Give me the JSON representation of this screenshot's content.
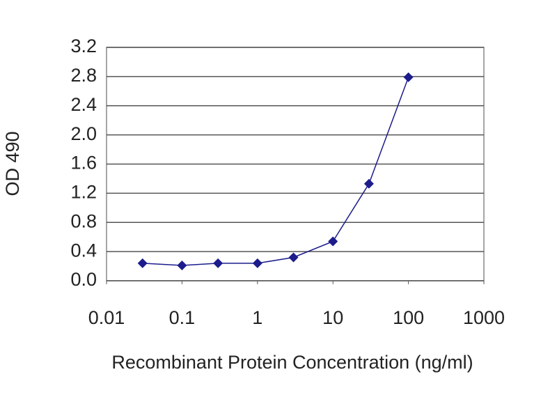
{
  "chart_data": {
    "type": "line",
    "x_label": "Recombinant Protein Concentration (ng/ml)",
    "y_label": "OD 490",
    "x_log": true,
    "grid": true,
    "x": [
      0.03,
      0.1,
      0.3,
      1,
      3,
      10,
      30,
      100
    ],
    "series": [
      {
        "color": "#1c1c8c",
        "values": [
          0.24,
          0.21,
          0.24,
          0.24,
          0.32,
          0.54,
          1.33,
          2.79
        ]
      }
    ],
    "xlim": [
      0.01,
      1000
    ],
    "xticks": [
      0.01,
      0.1,
      1,
      10,
      100,
      1000
    ],
    "ylim": [
      0,
      3.2
    ],
    "yticks": [
      {
        "value": 0,
        "label": "0.0"
      },
      {
        "value": 0.4,
        "label": "0.4"
      },
      {
        "value": 0.8,
        "label": "0.8"
      },
      {
        "value": 1.2,
        "label": "1.2"
      },
      {
        "value": 1.6,
        "label": "1.6"
      },
      {
        "value": 2.0,
        "label": "2.0"
      },
      {
        "value": 2.4,
        "label": "2.4"
      },
      {
        "value": 2.8,
        "label": "2.8"
      },
      {
        "value": 3.2,
        "label": "3.2"
      }
    ]
  }
}
